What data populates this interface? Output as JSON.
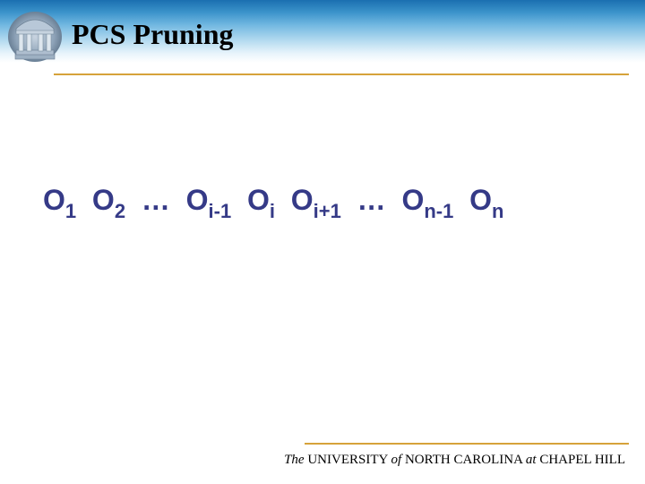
{
  "colors": {
    "accent_rule": "#d6a23a",
    "title_text": "#000000",
    "body_text": "#353a87",
    "footer_text": "#000000",
    "header_gradient": [
      "#1b6fb0",
      "#3c94cb",
      "#72b8e1",
      "#b5dbf0",
      "#e8f4fb",
      "#ffffff"
    ],
    "background": "#ffffff"
  },
  "typography": {
    "title_fontsize": 32,
    "title_weight": "bold",
    "body_fontsize": 32,
    "body_weight": "bold",
    "subscript_fontsize": 22,
    "footer_fontsize": 15
  },
  "header": {
    "title": "PCS Pruning",
    "logo_alt": "Old Well columns logo"
  },
  "sequence": {
    "symbol": "O",
    "terms": [
      {
        "sub": "1"
      },
      {
        "sub": "2"
      },
      {
        "ellipsis": true
      },
      {
        "sub": "i-1"
      },
      {
        "sub": "i"
      },
      {
        "sub": "i+1"
      },
      {
        "ellipsis": true
      },
      {
        "sub": "n-1"
      },
      {
        "sub": "n"
      }
    ],
    "ellipsis_glyph": "…"
  },
  "footer": {
    "t0": "The",
    "t1": "UNIVERSITY",
    "t2": "of",
    "t3": "NORTH  CAROLINA",
    "t4": "at",
    "t5": "CHAPEL HILL"
  }
}
